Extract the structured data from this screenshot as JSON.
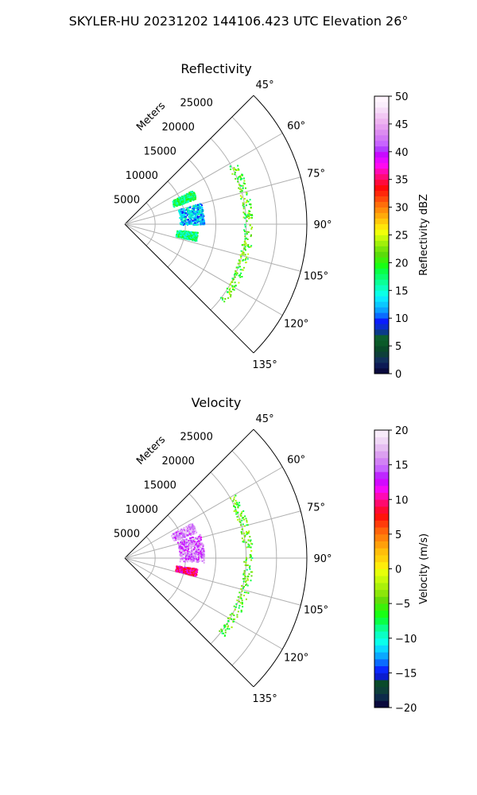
{
  "figure_title": "SKYLER-HU  20231202  144106.423 UTC Elevation 26°",
  "chart_data": [
    {
      "type": "polar-sector-scan",
      "title": "Reflectivity",
      "radial_axis_label": "Meters",
      "radial_ticks": [
        "5000",
        "10000",
        "15000",
        "20000",
        "25000"
      ],
      "radial_range": [
        0,
        30000
      ],
      "angular_ticks": [
        "45°",
        "60°",
        "75°",
        "90°",
        "105°",
        "120°",
        "135°"
      ],
      "angular_range_deg": [
        45,
        135
      ],
      "grid": true,
      "colorbar": {
        "label": "Reflectivity dBZ",
        "range": [
          0,
          50
        ],
        "ticks": [
          "0",
          "5",
          "10",
          "15",
          "20",
          "25",
          "30",
          "35",
          "40",
          "45",
          "50"
        ],
        "colors": [
          "#0a0a3c",
          "#0d1a55",
          "#12305a",
          "#0e3f3a",
          "#0a4a2a",
          "#0b5a28",
          "#0d5f2f",
          "#0b3b8a",
          "#0a2dcf",
          "#0a1cff",
          "#0a6bff",
          "#0aa0ff",
          "#0ac8ff",
          "#0ae8ff",
          "#0affe6",
          "#0affc0",
          "#0aff96",
          "#0aff6e",
          "#0aff46",
          "#19ff14",
          "#3cf00a",
          "#5adc0a",
          "#78e60a",
          "#a0f00a",
          "#c8fa0a",
          "#f0ff0a",
          "#ffe60a",
          "#ffc80a",
          "#ffaa0a",
          "#ff8c0a",
          "#ff6e0a",
          "#ff4b0a",
          "#ff280a",
          "#ff0a0a",
          "#ff0a3c",
          "#ff0a78",
          "#ff0ab4",
          "#ff0af0",
          "#e60aff",
          "#c80aff",
          "#b43cff",
          "#c864ff",
          "#d278f5",
          "#dc8cf0",
          "#e6a0f0",
          "#eeb4f0",
          "#f2c8f4",
          "#f6dcf8",
          "#faeefc",
          "#fff5fe"
        ],
        "layout": "right-of-plot"
      },
      "echoes": [
        {
          "label": "main-echo-north",
          "az_from_deg": 63,
          "az_to_deg": 70,
          "range_from_m": 8500,
          "range_to_m": 12500,
          "value_dbz": 18
        },
        {
          "label": "main-echo-mid",
          "az_from_deg": 74,
          "az_to_deg": 90,
          "range_from_m": 9000,
          "range_to_m": 13000,
          "value_dbz": 13
        },
        {
          "label": "main-echo-south",
          "az_from_deg": 96,
          "az_to_deg": 103,
          "range_from_m": 8500,
          "range_to_m": 12000,
          "value_dbz": 17
        },
        {
          "label": "far-arc",
          "az_from_deg": 60,
          "az_to_deg": 128,
          "range_from_m": 19500,
          "range_to_m": 21000,
          "value_dbz": 21
        }
      ]
    },
    {
      "type": "polar-sector-scan",
      "title": "Velocity",
      "radial_axis_label": "Meters",
      "radial_ticks": [
        "5000",
        "10000",
        "15000",
        "20000",
        "25000"
      ],
      "radial_range": [
        0,
        30000
      ],
      "angular_ticks": [
        "45°",
        "60°",
        "75°",
        "90°",
        "105°",
        "120°",
        "135°"
      ],
      "angular_range_deg": [
        45,
        135
      ],
      "grid": true,
      "colorbar": {
        "label": "Velocity (m/s)",
        "range": [
          -20,
          20
        ],
        "ticks": [
          "−20",
          "−15",
          "−10",
          "−5",
          "0",
          "5",
          "10",
          "15",
          "20"
        ],
        "colors": [
          "#0a0a3c",
          "#0d2a4a",
          "#0e3f3a",
          "#0a4a2a",
          "#0b1ccf",
          "#0a28ff",
          "#0a6bff",
          "#0aa8ff",
          "#0ad8ff",
          "#0affea",
          "#0affc4",
          "#0aff8c",
          "#0aff46",
          "#19ff14",
          "#3cf00a",
          "#64dc0a",
          "#8ce60a",
          "#aaf00a",
          "#c8fa0a",
          "#e6ff0a",
          "#ffec0a",
          "#ffd20a",
          "#ffbe0a",
          "#ffa00a",
          "#ff820a",
          "#ff640a",
          "#ff3c0a",
          "#ff140a",
          "#ff0a32",
          "#ff0a6e",
          "#ff0ab4",
          "#f50af5",
          "#d20aff",
          "#be28ff",
          "#c864ff",
          "#d282f5",
          "#dca0f0",
          "#e6bef2",
          "#f0d8f6",
          "#f8ecfa"
        ],
        "layout": "right-of-plot"
      },
      "echoes": [
        {
          "label": "main-echo-north",
          "az_from_deg": 62,
          "az_to_deg": 70,
          "range_from_m": 8500,
          "range_to_m": 12500,
          "value_ms": 16
        },
        {
          "label": "main-echo-mid",
          "az_from_deg": 72,
          "az_to_deg": 93,
          "range_from_m": 9000,
          "range_to_m": 13000,
          "value_ms": 15
        },
        {
          "label": "main-echo-south-warm",
          "az_from_deg": 98,
          "az_to_deg": 104,
          "range_from_m": 8500,
          "range_to_m": 12000,
          "value_ms": 10
        },
        {
          "label": "far-arc",
          "az_from_deg": 60,
          "az_to_deg": 128,
          "range_from_m": 19500,
          "range_to_m": 21000,
          "value_ms": -5
        }
      ]
    }
  ]
}
